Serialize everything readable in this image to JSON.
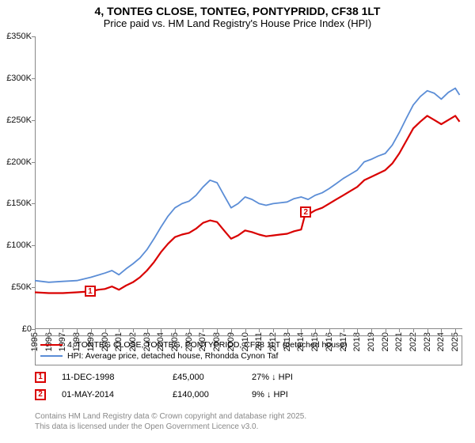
{
  "title_line1": "4, TONTEG CLOSE, TONTEG, PONTYPRIDD, CF38 1LT",
  "title_line2": "Price paid vs. HM Land Registry's House Price Index (HPI)",
  "chart": {
    "type": "line",
    "background_color": "#ffffff",
    "shade_color": "#d9e4f0",
    "x_range": [
      1995,
      2025.5
    ],
    "y_range": [
      0,
      350000
    ],
    "y_ticks": [
      0,
      50000,
      100000,
      150000,
      200000,
      250000,
      300000,
      350000
    ],
    "y_tick_labels": [
      "£0",
      "£50K",
      "£100K",
      "£150K",
      "£200K",
      "£250K",
      "£300K",
      "£350K"
    ],
    "x_ticks": [
      1995,
      1996,
      1997,
      1998,
      1999,
      2000,
      2001,
      2002,
      2003,
      2004,
      2005,
      2006,
      2007,
      2008,
      2009,
      2010,
      2011,
      2012,
      2013,
      2014,
      2015,
      2016,
      2017,
      2018,
      2019,
      2020,
      2021,
      2022,
      2023,
      2024,
      2025
    ],
    "label_fontsize": 11,
    "shaded_ranges": [
      {
        "from": 1998.95,
        "to": 2014.33
      }
    ],
    "series": [
      {
        "name": "property",
        "label": "4, TONTEG CLOSE, TONTEG, PONTYPRIDD, CF38 1LT (detached house)",
        "color": "#d90000",
        "line_width": 2.2,
        "points": [
          [
            1995.0,
            44000
          ],
          [
            1996.0,
            43000
          ],
          [
            1997.0,
            43000
          ],
          [
            1998.0,
            44000
          ],
          [
            1998.95,
            45000
          ],
          [
            1999.5,
            47000
          ],
          [
            2000.0,
            48000
          ],
          [
            2000.5,
            51000
          ],
          [
            2001.0,
            47000
          ],
          [
            2001.5,
            52000
          ],
          [
            2002.0,
            56000
          ],
          [
            2002.5,
            62000
          ],
          [
            2003.0,
            70000
          ],
          [
            2003.5,
            80000
          ],
          [
            2004.0,
            92000
          ],
          [
            2004.5,
            102000
          ],
          [
            2005.0,
            110000
          ],
          [
            2005.5,
            113000
          ],
          [
            2006.0,
            115000
          ],
          [
            2006.5,
            120000
          ],
          [
            2007.0,
            127000
          ],
          [
            2007.5,
            130000
          ],
          [
            2008.0,
            128000
          ],
          [
            2008.5,
            118000
          ],
          [
            2009.0,
            108000
          ],
          [
            2009.5,
            112000
          ],
          [
            2010.0,
            118000
          ],
          [
            2010.5,
            116000
          ],
          [
            2011.0,
            113000
          ],
          [
            2011.5,
            111000
          ],
          [
            2012.0,
            112000
          ],
          [
            2012.5,
            113000
          ],
          [
            2013.0,
            114000
          ],
          [
            2013.5,
            117000
          ],
          [
            2014.0,
            119000
          ],
          [
            2014.33,
            140000
          ],
          [
            2014.6,
            138000
          ],
          [
            2015.0,
            142000
          ],
          [
            2015.5,
            145000
          ],
          [
            2016.0,
            150000
          ],
          [
            2016.5,
            155000
          ],
          [
            2017.0,
            160000
          ],
          [
            2017.5,
            165000
          ],
          [
            2018.0,
            170000
          ],
          [
            2018.5,
            178000
          ],
          [
            2019.0,
            182000
          ],
          [
            2019.5,
            186000
          ],
          [
            2020.0,
            190000
          ],
          [
            2020.5,
            198000
          ],
          [
            2021.0,
            210000
          ],
          [
            2021.5,
            225000
          ],
          [
            2022.0,
            240000
          ],
          [
            2022.5,
            248000
          ],
          [
            2023.0,
            255000
          ],
          [
            2023.5,
            250000
          ],
          [
            2024.0,
            245000
          ],
          [
            2024.5,
            250000
          ],
          [
            2025.0,
            255000
          ],
          [
            2025.3,
            248000
          ]
        ]
      },
      {
        "name": "hpi",
        "label": "HPI: Average price, detached house, Rhondda Cynon Taf",
        "color": "#5b8dd6",
        "line_width": 1.8,
        "points": [
          [
            1995.0,
            58000
          ],
          [
            1996.0,
            56000
          ],
          [
            1997.0,
            57000
          ],
          [
            1998.0,
            58000
          ],
          [
            1999.0,
            62000
          ],
          [
            2000.0,
            67000
          ],
          [
            2000.5,
            70000
          ],
          [
            2001.0,
            65000
          ],
          [
            2001.5,
            72000
          ],
          [
            2002.0,
            78000
          ],
          [
            2002.5,
            85000
          ],
          [
            2003.0,
            95000
          ],
          [
            2003.5,
            108000
          ],
          [
            2004.0,
            122000
          ],
          [
            2004.5,
            135000
          ],
          [
            2005.0,
            145000
          ],
          [
            2005.5,
            150000
          ],
          [
            2006.0,
            153000
          ],
          [
            2006.5,
            160000
          ],
          [
            2007.0,
            170000
          ],
          [
            2007.5,
            178000
          ],
          [
            2008.0,
            175000
          ],
          [
            2008.5,
            160000
          ],
          [
            2009.0,
            145000
          ],
          [
            2009.5,
            150000
          ],
          [
            2010.0,
            158000
          ],
          [
            2010.5,
            155000
          ],
          [
            2011.0,
            150000
          ],
          [
            2011.5,
            148000
          ],
          [
            2012.0,
            150000
          ],
          [
            2012.5,
            151000
          ],
          [
            2013.0,
            152000
          ],
          [
            2013.5,
            156000
          ],
          [
            2014.0,
            158000
          ],
          [
            2014.5,
            155000
          ],
          [
            2015.0,
            160000
          ],
          [
            2015.5,
            163000
          ],
          [
            2016.0,
            168000
          ],
          [
            2016.5,
            174000
          ],
          [
            2017.0,
            180000
          ],
          [
            2017.5,
            185000
          ],
          [
            2018.0,
            190000
          ],
          [
            2018.5,
            200000
          ],
          [
            2019.0,
            203000
          ],
          [
            2019.5,
            207000
          ],
          [
            2020.0,
            210000
          ],
          [
            2020.5,
            220000
          ],
          [
            2021.0,
            235000
          ],
          [
            2021.5,
            252000
          ],
          [
            2022.0,
            268000
          ],
          [
            2022.5,
            278000
          ],
          [
            2023.0,
            285000
          ],
          [
            2023.5,
            282000
          ],
          [
            2024.0,
            275000
          ],
          [
            2024.5,
            283000
          ],
          [
            2025.0,
            288000
          ],
          [
            2025.3,
            280000
          ]
        ]
      }
    ],
    "markers": [
      {
        "n": "1",
        "x": 1998.95,
        "y": 45000,
        "color": "#d90000"
      },
      {
        "n": "2",
        "x": 2014.33,
        "y": 140000,
        "color": "#d90000"
      }
    ]
  },
  "legend": {
    "border_color": "#888888",
    "items": [
      {
        "color": "#d90000",
        "label": "4, TONTEG CLOSE, TONTEG, PONTYPRIDD, CF38 1LT (detached house)"
      },
      {
        "color": "#5b8dd6",
        "label": "HPI: Average price, detached house, Rhondda Cynon Taf"
      }
    ]
  },
  "events": [
    {
      "n": "1",
      "color": "#d90000",
      "date": "11-DEC-1998",
      "price": "£45,000",
      "note": "27% ↓ HPI"
    },
    {
      "n": "2",
      "color": "#d90000",
      "date": "01-MAY-2014",
      "price": "£140,000",
      "note": "9% ↓ HPI"
    }
  ],
  "footer_line1": "Contains HM Land Registry data © Crown copyright and database right 2025.",
  "footer_line2": "This data is licensed under the Open Government Licence v3.0."
}
